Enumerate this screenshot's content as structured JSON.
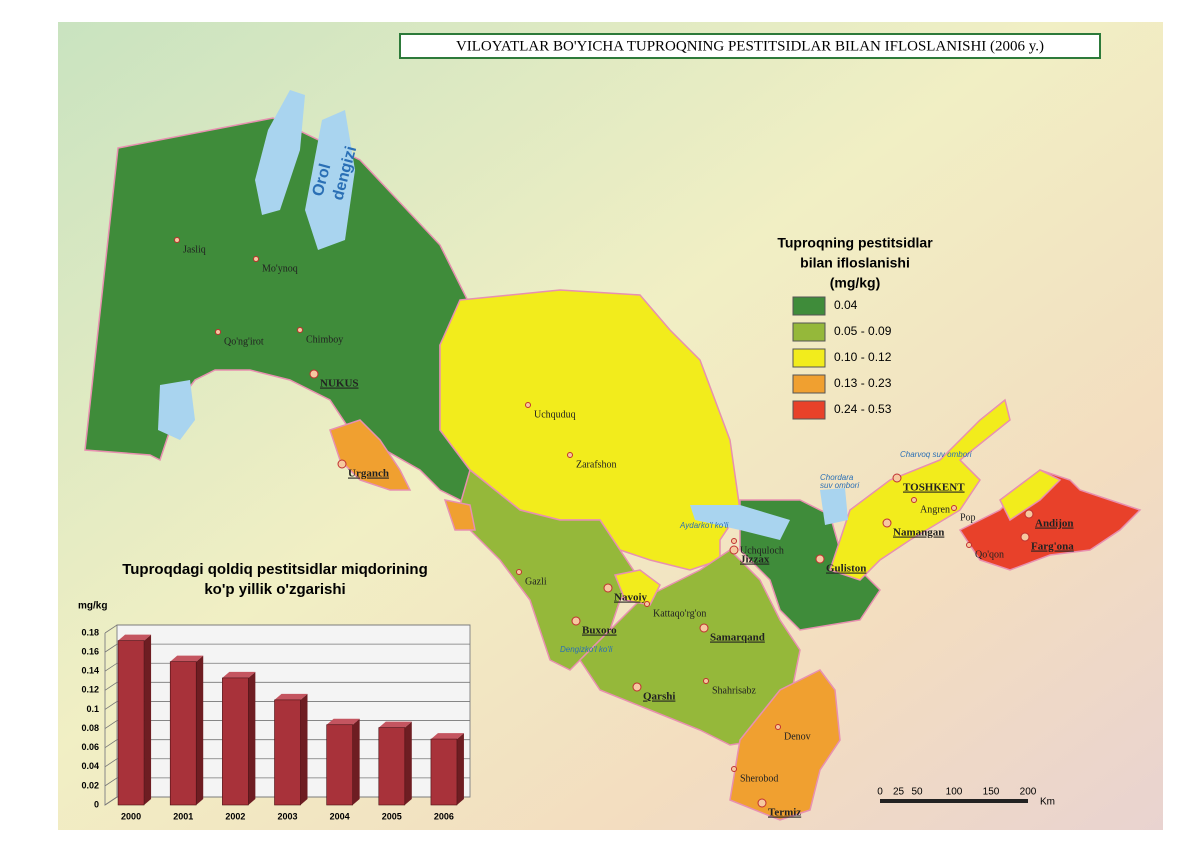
{
  "title": "VILOYATLAR BO'YICHA TUPROQNING PESTITSIDLAR BILAN IFLOSLANISHI (2006 y.)",
  "legend": {
    "title": [
      "Tuproqning pestitsidlar",
      "bilan ifloslanishi",
      "(mg/kg)"
    ],
    "items": [
      {
        "label": "0.04",
        "color": "#3f8c3a"
      },
      {
        "label": "0.05 - 0.09",
        "color": "#95b83a"
      },
      {
        "label": "0.10 - 0.12",
        "color": "#f2ec1c"
      },
      {
        "label": "0.13 - 0.23",
        "color": "#f0a030"
      },
      {
        "label": "0.24 - 0.53",
        "color": "#e8412a"
      }
    ]
  },
  "places": [
    "Jasliq",
    "Mo'ynoq",
    "Qo'ng'irot",
    "Chimboy",
    "NUKUS",
    "Urganch",
    "Uchquduq",
    "Zarafshon",
    "Gazli",
    "Navoiy",
    "Buxoro",
    "Kattaqo'rg'on",
    "Samarqand",
    "Qarshi",
    "Shahrisabz",
    "Denov",
    "Sherobod",
    "Termiz",
    "Jizzax",
    "Uchquloch",
    "Guliston",
    "TOSHKENT",
    "Angren",
    "Namangan",
    "Pop",
    "Andijon",
    "Farg'ona",
    "Qo'qon"
  ],
  "water": [
    "Orol",
    "dengizi",
    "Aydarko'l ko'li",
    "Chordara",
    "suv ombori",
    "Charvoq suv ombori",
    "Dengizko'l ko'li"
  ],
  "scale": {
    "ticks": [
      0,
      25,
      50,
      100,
      150,
      200
    ],
    "unit": "Km"
  },
  "chart_data": {
    "type": "bar",
    "title": [
      "Tuproqdagi qoldiq pestitsidlar miqdorining",
      "ko'p yillik o'zgarishi"
    ],
    "y_label": "mg/kg",
    "categories": [
      "2000",
      "2001",
      "2002",
      "2003",
      "2004",
      "2005",
      "2006"
    ],
    "values": [
      0.172,
      0.15,
      0.133,
      0.11,
      0.084,
      0.081,
      0.069
    ],
    "color": "#a8323a",
    "ylim": [
      0,
      0.18
    ],
    "yticks": [
      0,
      0.02,
      0.04,
      0.06,
      0.08,
      0.1,
      0.12,
      0.14,
      0.16,
      0.18
    ],
    "grid": true
  }
}
